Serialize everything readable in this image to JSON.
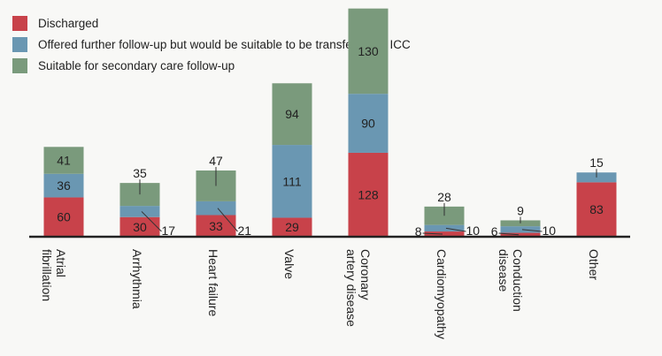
{
  "chart_data": {
    "type": "bar",
    "stacked": true,
    "categories": [
      [
        "Atrial",
        "fibrillation"
      ],
      [
        "Arrhythmia"
      ],
      [
        "Heart failure"
      ],
      [
        "Valve"
      ],
      [
        "Coronary",
        "artery disease"
      ],
      [
        "Cardiomyopathy"
      ],
      [
        "Conduction",
        "disease"
      ],
      [
        "Other"
      ]
    ],
    "series": [
      {
        "name": "Discharged",
        "color": "#c8424a",
        "values": [
          60,
          30,
          33,
          29,
          128,
          8,
          6,
          83
        ]
      },
      {
        "name": "Offered further follow-up but would be suitable to be transferred to ICC",
        "color": "#6a97b2",
        "values": [
          36,
          17,
          21,
          111,
          90,
          10,
          10,
          15
        ]
      },
      {
        "name": "Suitable for secondary care follow-up",
        "color": "#7a9a7c",
        "values": [
          41,
          35,
          47,
          94,
          130,
          28,
          9,
          null
        ]
      }
    ],
    "legend_position": "top-left",
    "grid": false
  }
}
